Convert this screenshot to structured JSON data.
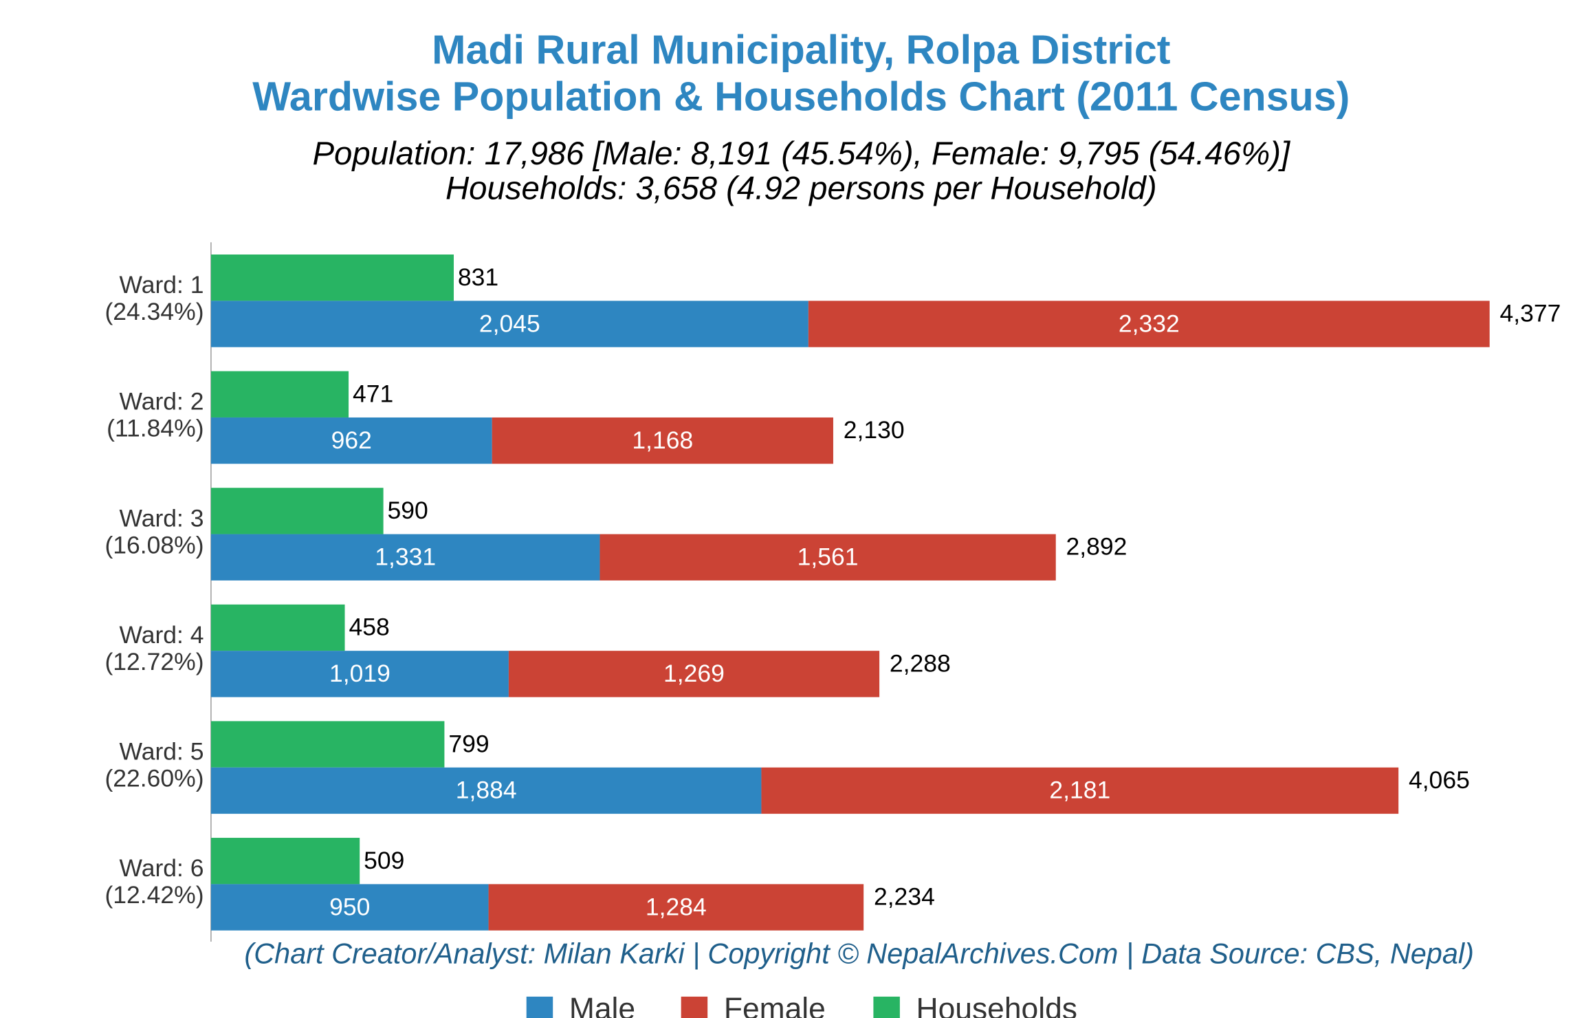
{
  "chart_data": {
    "type": "bar",
    "orientation": "horizontal",
    "title": [
      "Madi Rural Municipality, Rolpa District",
      "Wardwise Population & Households Chart (2011 Census)"
    ],
    "subtitle": [
      "Population: 17,986 [Male: 8,191 (45.54%), Female: 9,795 (54.46%)]",
      "Households: 3,658 (4.92 persons per Household)"
    ],
    "footer": "(Chart Creator/Analyst: Milan Karki | Copyright © NepalArchives.Com | Data Source: CBS, Nepal)",
    "categories": [
      "Ward: 1\n(24.34%)",
      "Ward: 2\n(11.84%)",
      "Ward: 3\n(16.08%)",
      "Ward: 4\n(12.72%)",
      "Ward: 5\n(22.60%)",
      "Ward: 6\n(12.42%)"
    ],
    "series": [
      {
        "name": "Male",
        "color": "#2e86c1",
        "stack": "population",
        "values": [
          2045,
          962,
          1331,
          1019,
          1884,
          950
        ],
        "value_labels": [
          "2,045",
          "962",
          "1,331",
          "1,019",
          "1,884",
          "950"
        ]
      },
      {
        "name": "Female",
        "color": "#cb4335",
        "stack": "population",
        "values": [
          2332,
          1168,
          1561,
          1269,
          2181,
          1284
        ],
        "value_labels": [
          "2,332",
          "1,168",
          "1,561",
          "1,269",
          "2,181",
          "1,284"
        ]
      },
      {
        "name": "Households",
        "color": "#28b463",
        "stack": "households",
        "values": [
          831,
          471,
          590,
          458,
          799,
          509
        ]
      }
    ],
    "totals": [
      4377,
      2130,
      2892,
      2288,
      4065,
      2234
    ],
    "total_labels": [
      "4,377",
      "2,130",
      "2,892",
      "2,288",
      "4,065",
      "2,234"
    ],
    "xlim": [
      0,
      4650
    ],
    "legend": "bottom"
  }
}
